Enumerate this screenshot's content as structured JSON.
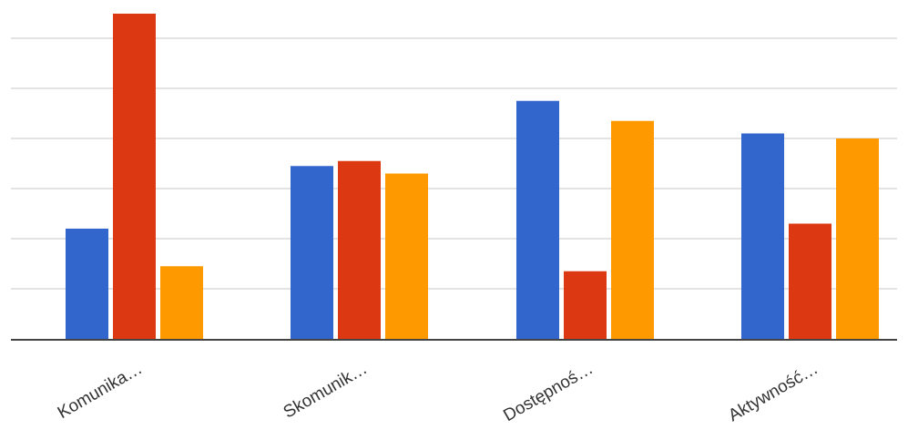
{
  "chart_data": {
    "type": "bar",
    "categories": [
      "Komunika…",
      "Skomunik…",
      "Dostępnoś…",
      "Aktywność…"
    ],
    "series": [
      {
        "values": [
          2.2,
          3.45,
          4.75,
          4.1
        ],
        "color": "#3366cc"
      },
      {
        "values": [
          6.6,
          3.55,
          1.35,
          2.3
        ],
        "color": "#dc3912"
      },
      {
        "values": [
          1.45,
          3.3,
          4.35,
          4.0
        ],
        "color": "#ff9900"
      }
    ],
    "ylim": [
      0,
      6.5
    ],
    "grid": true,
    "title": "",
    "xlabel": "",
    "ylabel": ""
  }
}
